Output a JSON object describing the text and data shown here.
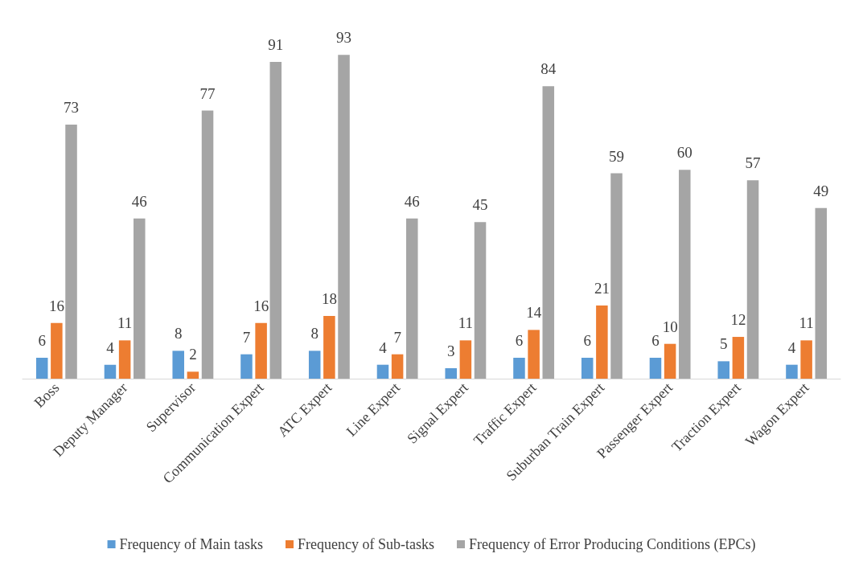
{
  "chart_data": {
    "type": "bar",
    "categories": [
      "Boss",
      "Deputy Manager",
      "Supervisor",
      "Communication Expert",
      "ATC Expert",
      "Line Expert",
      "Signal Expert",
      "Traffic Expert",
      "Suburban Train Expert",
      "Passenger Expert",
      "Traction Expert",
      "Wagon Expert"
    ],
    "series": [
      {
        "name": "Frequency of Main tasks",
        "color": "#5b9bd5",
        "values": [
          6,
          4,
          8,
          7,
          8,
          4,
          3,
          6,
          6,
          6,
          5,
          4
        ]
      },
      {
        "name": "Frequency of Sub-tasks",
        "color": "#ed7d31",
        "values": [
          16,
          11,
          2,
          16,
          18,
          7,
          11,
          14,
          21,
          10,
          12,
          11
        ]
      },
      {
        "name": "Frequency of Error Producing Conditions (EPCs)",
        "color": "#a5a5a5",
        "values": [
          73,
          46,
          77,
          91,
          93,
          46,
          45,
          84,
          59,
          60,
          57,
          49
        ]
      }
    ],
    "data_labels": true,
    "legend": "bottom"
  }
}
